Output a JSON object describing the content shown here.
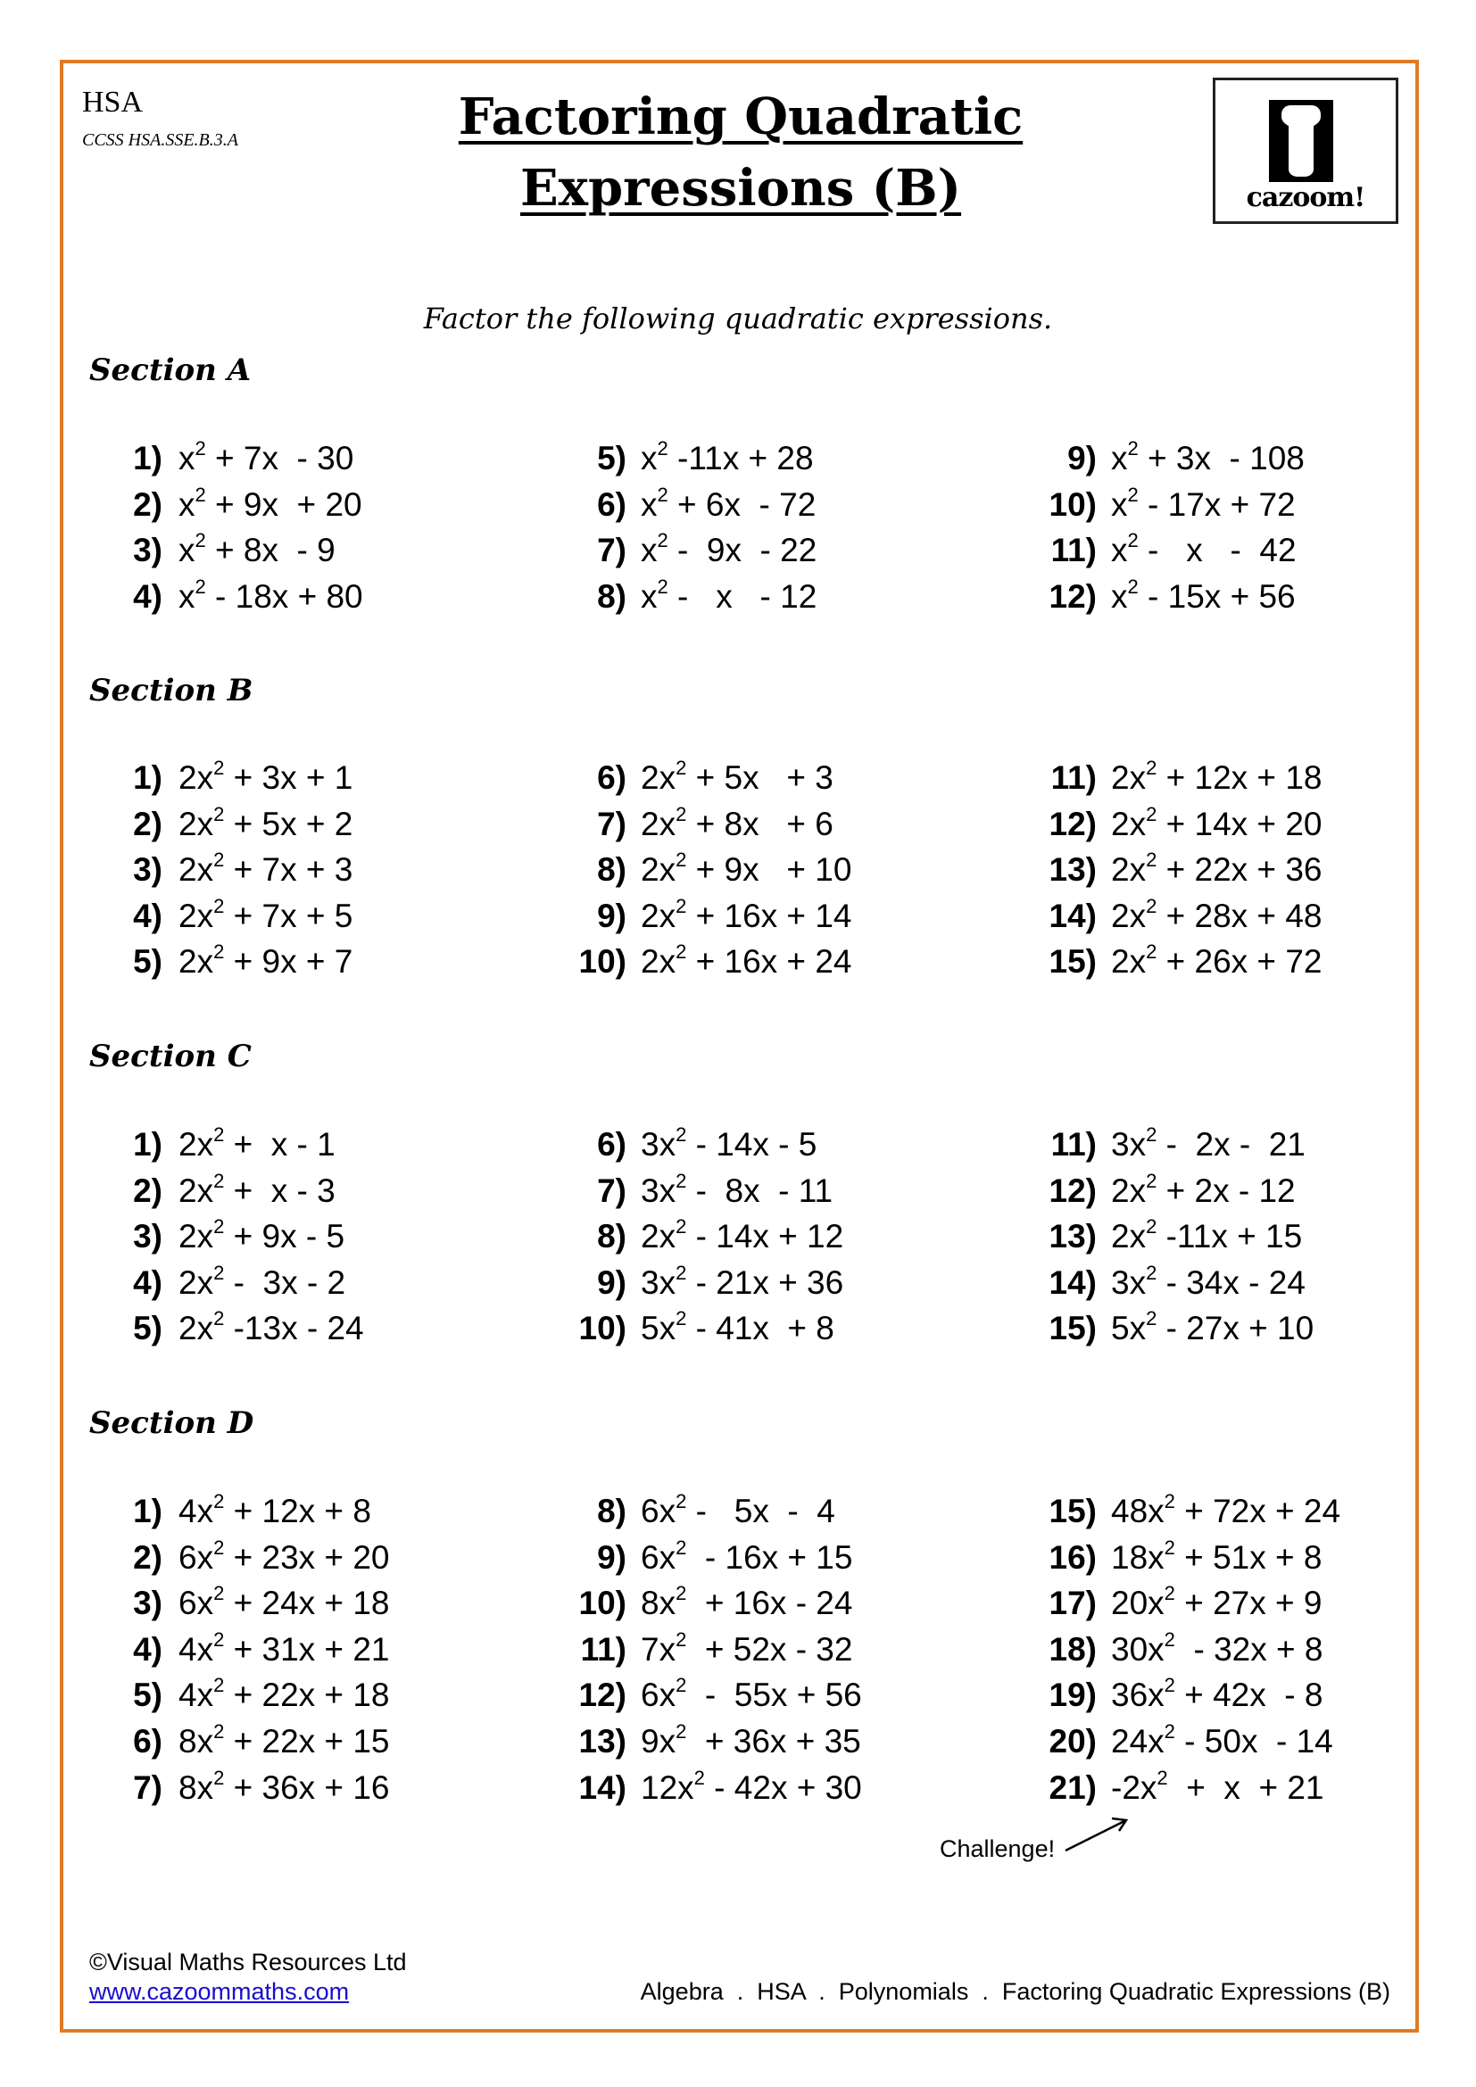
{
  "header": {
    "course": "HSA",
    "standard": "CCSS HSA.SSE.B.3.A",
    "title_line1": "Factoring Quadratic",
    "title_line2": "Expressions (B)",
    "logo_text": "cazoom!"
  },
  "instruction": "Factor the following quadratic expressions.",
  "sections": [
    {
      "title": "Section A",
      "columns": [
        [
          [
            "1)",
            "x",
            " + 7x  - 30"
          ],
          [
            "2)",
            "x",
            " + 9x  + 20"
          ],
          [
            "3)",
            "x",
            " + 8x  - 9"
          ],
          [
            "4)",
            "x",
            " - 18x + 80"
          ]
        ],
        [
          [
            "5)",
            "x",
            " -11x + 28"
          ],
          [
            "6)",
            "x",
            " + 6x  - 72"
          ],
          [
            "7)",
            "x",
            " -  9x  - 22"
          ],
          [
            "8)",
            "x",
            " -   x   - 12"
          ]
        ],
        [
          [
            "9)",
            "x",
            " + 3x  - 108"
          ],
          [
            "10)",
            "x",
            " - 17x + 72"
          ],
          [
            "11)",
            "x",
            " -   x   -  42"
          ],
          [
            "12)",
            "x",
            " - 15x + 56"
          ]
        ]
      ]
    },
    {
      "title": "Section B",
      "columns": [
        [
          [
            "1)",
            "2x",
            " + 3x + 1"
          ],
          [
            "2)",
            "2x",
            " + 5x + 2"
          ],
          [
            "3)",
            "2x",
            " + 7x + 3"
          ],
          [
            "4)",
            "2x",
            " + 7x + 5"
          ],
          [
            "5)",
            "2x",
            " + 9x + 7"
          ]
        ],
        [
          [
            "6)",
            "2x",
            " + 5x   + 3"
          ],
          [
            "7)",
            "2x",
            " + 8x   + 6"
          ],
          [
            "8)",
            "2x",
            " + 9x   + 10"
          ],
          [
            "9)",
            "2x",
            " + 16x + 14"
          ],
          [
            "10)",
            "2x",
            " + 16x + 24"
          ]
        ],
        [
          [
            "11)",
            "2x",
            " + 12x + 18"
          ],
          [
            "12)",
            "2x",
            " + 14x + 20"
          ],
          [
            "13)",
            "2x",
            " + 22x + 36"
          ],
          [
            "14)",
            "2x",
            " + 28x + 48"
          ],
          [
            "15)",
            "2x",
            " + 26x + 72"
          ]
        ]
      ]
    },
    {
      "title": "Section C",
      "columns": [
        [
          [
            "1)",
            "2x",
            " +  x - 1"
          ],
          [
            "2)",
            "2x",
            " +  x - 3"
          ],
          [
            "3)",
            "2x",
            " + 9x - 5"
          ],
          [
            "4)",
            "2x",
            " -  3x - 2"
          ],
          [
            "5)",
            "2x",
            " -13x - 24"
          ]
        ],
        [
          [
            "6)",
            "3x",
            " - 14x - 5"
          ],
          [
            "7)",
            "3x",
            " -  8x  - 11"
          ],
          [
            "8)",
            "2x",
            " - 14x + 12"
          ],
          [
            "9)",
            "3x",
            " - 21x + 36"
          ],
          [
            "10)",
            "5x",
            " - 41x  + 8"
          ]
        ],
        [
          [
            "11)",
            "3x",
            " -  2x -  21"
          ],
          [
            "12)",
            "2x",
            " + 2x - 12"
          ],
          [
            "13)",
            "2x",
            " -11x + 15"
          ],
          [
            "14)",
            "3x",
            " - 34x - 24"
          ],
          [
            "15)",
            "5x",
            " - 27x + 10"
          ]
        ]
      ]
    },
    {
      "title": "Section D",
      "columns": [
        [
          [
            "1)",
            "4x",
            " + 12x + 8"
          ],
          [
            "2)",
            "6x",
            " + 23x + 20"
          ],
          [
            "3)",
            "6x",
            " + 24x + 18"
          ],
          [
            "4)",
            "4x",
            " + 31x + 21"
          ],
          [
            "5)",
            "4x",
            " + 22x + 18"
          ],
          [
            "6)",
            "8x",
            " + 22x + 15"
          ],
          [
            "7)",
            "8x",
            " + 36x + 16"
          ]
        ],
        [
          [
            "8)",
            "6x",
            " -   5x  -  4"
          ],
          [
            "9)",
            "6x",
            "  - 16x + 15"
          ],
          [
            "10)",
            "8x",
            "  + 16x - 24"
          ],
          [
            "11)",
            "7x",
            "  + 52x - 32"
          ],
          [
            "12)",
            "6x",
            "  -  55x + 56"
          ],
          [
            "13)",
            "9x",
            "  + 36x + 35"
          ],
          [
            "14)",
            "12x",
            " - 42x + 30"
          ]
        ],
        [
          [
            "15)",
            "48x",
            " + 72x + 24"
          ],
          [
            "16)",
            "18x",
            " + 51x + 8"
          ],
          [
            "17)",
            "20x",
            " + 27x + 9"
          ],
          [
            "18)",
            "30x",
            "  - 32x + 8"
          ],
          [
            "19)",
            "36x",
            " + 42x  - 8"
          ],
          [
            "20)",
            "24x",
            " - 50x  - 14"
          ],
          [
            "21)",
            "-2x",
            "  +  x  + 21"
          ]
        ]
      ]
    }
  ],
  "exponent": "2",
  "challenge": "Challenge!",
  "footer": {
    "copyright": "©Visual Maths Resources Ltd",
    "website": "www.cazoommaths.com",
    "breadcrumb": "Algebra  .  HSA  .  Polynomials  .  Factoring Quadratic Expressions (B)"
  },
  "colors": {
    "border": "#e07b24",
    "link": "#1a0dcc"
  }
}
